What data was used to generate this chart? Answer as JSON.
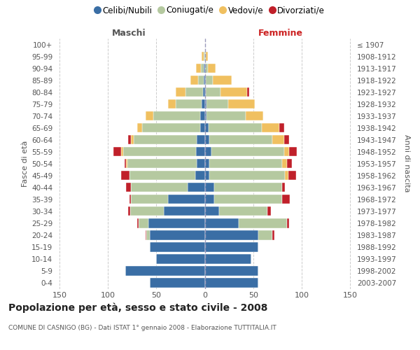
{
  "age_groups": [
    "0-4",
    "5-9",
    "10-14",
    "15-19",
    "20-24",
    "25-29",
    "30-34",
    "35-39",
    "40-44",
    "45-49",
    "50-54",
    "55-59",
    "60-64",
    "65-69",
    "70-74",
    "75-79",
    "80-84",
    "85-89",
    "90-94",
    "95-99",
    "100+"
  ],
  "birth_years": [
    "2003-2007",
    "1998-2002",
    "1993-1997",
    "1988-1992",
    "1983-1987",
    "1978-1982",
    "1973-1977",
    "1968-1972",
    "1963-1967",
    "1958-1962",
    "1953-1957",
    "1948-1952",
    "1943-1947",
    "1938-1942",
    "1933-1937",
    "1928-1932",
    "1923-1927",
    "1918-1922",
    "1913-1917",
    "1908-1912",
    "≤ 1907"
  ],
  "male_celibi": [
    57,
    82,
    50,
    57,
    57,
    58,
    42,
    38,
    18,
    10,
    8,
    9,
    8,
    5,
    5,
    3,
    2,
    1,
    1,
    0,
    0
  ],
  "male_coniugati": [
    0,
    0,
    0,
    0,
    3,
    10,
    35,
    38,
    58,
    68,
    72,
    75,
    65,
    60,
    48,
    27,
    18,
    6,
    3,
    1,
    0
  ],
  "male_vedovi": [
    0,
    0,
    0,
    0,
    0,
    0,
    0,
    0,
    0,
    0,
    1,
    2,
    3,
    5,
    8,
    8,
    10,
    8,
    5,
    2,
    0
  ],
  "male_divorziati": [
    0,
    0,
    0,
    0,
    1,
    2,
    2,
    2,
    5,
    8,
    2,
    8,
    3,
    0,
    0,
    0,
    0,
    0,
    0,
    0,
    0
  ],
  "female_nubili": [
    55,
    55,
    48,
    55,
    55,
    35,
    15,
    10,
    10,
    5,
    5,
    7,
    5,
    4,
    2,
    2,
    1,
    1,
    0,
    0,
    0
  ],
  "female_coniugate": [
    0,
    0,
    0,
    0,
    15,
    50,
    50,
    70,
    70,
    78,
    75,
    75,
    65,
    55,
    40,
    22,
    15,
    7,
    3,
    1,
    0
  ],
  "female_vedove": [
    0,
    0,
    0,
    0,
    0,
    0,
    0,
    0,
    0,
    3,
    5,
    5,
    12,
    18,
    18,
    28,
    28,
    20,
    8,
    2,
    0
  ],
  "female_divorziate": [
    0,
    0,
    0,
    0,
    2,
    2,
    3,
    8,
    3,
    8,
    5,
    8,
    5,
    5,
    0,
    0,
    2,
    0,
    0,
    0,
    0
  ],
  "color_celibi": "#3A6EA5",
  "color_coniugati": "#B5C9A0",
  "color_vedovi": "#F0C060",
  "color_divorziati": "#C0202A",
  "legend_labels": [
    "Celibi/Nubili",
    "Coniugati/e",
    "Vedovi/e",
    "Divorziati/e"
  ],
  "title": "Popolazione per età, sesso e stato civile - 2008",
  "subtitle": "COMUNE DI CASNIGO (BG) - Dati ISTAT 1° gennaio 2008 - Elaborazione TUTTITALIA.IT",
  "ylabel_left": "Fasce di età",
  "ylabel_right": "Anni di nascita",
  "label_maschi": "Maschi",
  "label_femmine": "Femmine",
  "maschi_color": "#555555",
  "femmine_color": "#cc2222",
  "xlim": 155,
  "bg_color": "#ffffff",
  "grid_color": "#cccccc"
}
